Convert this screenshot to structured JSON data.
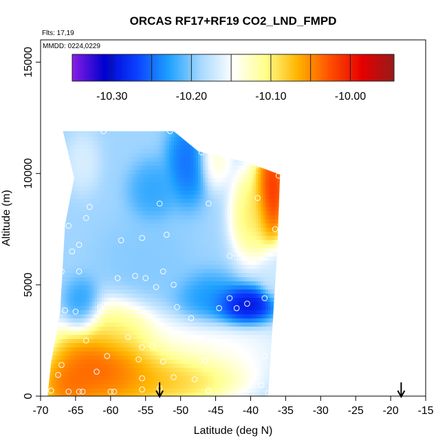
{
  "chart_data": {
    "type": "heatmap",
    "title": "ORCAS RF17+RF19 CO2_LND_FMPD",
    "xlabel": "Latitude (deg N)",
    "ylabel": "Altitude (m)",
    "flights_note": "Flts: 17,19",
    "dates_note": "MMDD: 0224,0229",
    "xlim": [
      -70,
      -15
    ],
    "ylim": [
      0,
      16000
    ],
    "x_ticks": [
      -70,
      -65,
      -60,
      -55,
      -50,
      -45,
      -40,
      -35,
      -30,
      -25,
      -20,
      -15
    ],
    "y_ticks": [
      0,
      5000,
      10000,
      15000
    ],
    "grid": false,
    "colorbar": {
      "range": [
        -10.35,
        -9.945
      ],
      "tick_values": [
        -10.3,
        -10.2,
        -10.1,
        -10.0
      ],
      "tick_labels": [
        "-10.30",
        "-10.20",
        "-10.10",
        "-10.00"
      ],
      "divider_values": [
        -10.3,
        -10.25,
        -10.2,
        -10.15,
        -10.1,
        -10.05,
        -10.0
      ],
      "stops": [
        "#8a1de6",
        "#0000cd",
        "#0a40ff",
        "#1ea0ff",
        "#a8d8ff",
        "#ffffff",
        "#ffff8c",
        "#ffb400",
        "#ff5000",
        "#e60000",
        "#961b1b"
      ]
    },
    "domain_outline": [
      [
        -66.8,
        11900
      ],
      [
        -51,
        11900
      ],
      [
        -47.5,
        11000
      ],
      [
        -40.5,
        10500
      ],
      [
        -35.8,
        9950
      ],
      [
        -36.2,
        6500
      ],
      [
        -36.8,
        3500
      ],
      [
        -37.5,
        0
      ],
      [
        -69,
        0
      ],
      [
        -68.5,
        1500
      ],
      [
        -67.2,
        3800
      ],
      [
        -66.5,
        7700
      ],
      [
        -65.2,
        9800
      ]
    ],
    "field_features": [
      {
        "x": -61,
        "y": 1400,
        "sx": 6,
        "sy": 1500,
        "v": -9.99
      },
      {
        "x": -53,
        "y": 900,
        "sx": 9,
        "sy": 1100,
        "v": -10.05
      },
      {
        "x": -66,
        "y": 400,
        "sx": 3,
        "sy": 900,
        "v": -10.02
      },
      {
        "x": -59,
        "y": 3000,
        "sx": 4,
        "sy": 1100,
        "v": -10.1
      },
      {
        "x": -47,
        "y": 2300,
        "sx": 9,
        "sy": 1100,
        "v": -10.14
      },
      {
        "x": -37,
        "y": 9200,
        "sx": 1.8,
        "sy": 1800,
        "v": -9.97
      },
      {
        "x": -40,
        "y": 8200,
        "sx": 2.2,
        "sy": 1600,
        "v": -10.08
      },
      {
        "x": -45,
        "y": 10700,
        "sx": 1.8,
        "sy": 1000,
        "v": -10.12
      },
      {
        "x": -41,
        "y": 4000,
        "sx": 3.2,
        "sy": 650,
        "v": -10.33
      },
      {
        "x": -46,
        "y": 4300,
        "sx": 3.5,
        "sy": 900,
        "v": -10.24
      },
      {
        "x": -49,
        "y": 10500,
        "sx": 2.2,
        "sy": 1400,
        "v": -10.26
      },
      {
        "x": -54,
        "y": 9200,
        "sx": 2.5,
        "sy": 1000,
        "v": -10.23
      },
      {
        "x": -64,
        "y": 4000,
        "sx": 2,
        "sy": 900,
        "v": -10.24
      },
      {
        "x": -55,
        "y": 6000,
        "sx": 5,
        "sy": 1500,
        "v": -10.2
      },
      {
        "x": -64,
        "y": 10500,
        "sx": 1.8,
        "sy": 1000,
        "v": -10.16
      },
      {
        "x": -36.5,
        "y": 5500,
        "sx": 1.5,
        "sy": 900,
        "v": -10.17
      }
    ],
    "field_base_value": -10.19,
    "sample_points": [
      [
        -61.0,
        11900
      ],
      [
        -51.5,
        11900
      ],
      [
        -47.0,
        10950
      ],
      [
        -44.0,
        10800
      ],
      [
        -41.5,
        10700
      ],
      [
        -39.0,
        10400
      ],
      [
        -36.0,
        9900
      ],
      [
        -53.0,
        8650
      ],
      [
        -46.0,
        8650
      ],
      [
        -39.0,
        8900
      ],
      [
        -63.0,
        8500
      ],
      [
        -63.5,
        8000
      ],
      [
        -66.0,
        7650
      ],
      [
        -36.5,
        7500
      ],
      [
        -58.5,
        7000
      ],
      [
        -55.5,
        7100
      ],
      [
        -52.0,
        7250
      ],
      [
        -64.5,
        6800
      ],
      [
        -65.5,
        6500
      ],
      [
        -43.0,
        6300
      ],
      [
        -41.0,
        6300
      ],
      [
        -40.0,
        6300
      ],
      [
        -37.5,
        6500
      ],
      [
        -67.0,
        5600
      ],
      [
        -64.5,
        5600
      ],
      [
        -52.5,
        5600
      ],
      [
        -59.0,
        5300
      ],
      [
        -56.5,
        5400
      ],
      [
        -55.0,
        5300
      ],
      [
        -51.0,
        5000
      ],
      [
        -53.5,
        4900
      ],
      [
        -36.0,
        5000
      ],
      [
        -43.0,
        4400
      ],
      [
        -38.0,
        4400
      ],
      [
        -40.5,
        4150
      ],
      [
        -44.5,
        3950
      ],
      [
        -42.0,
        3950
      ],
      [
        -50.5,
        4000
      ],
      [
        -61.5,
        4000
      ],
      [
        -66.5,
        3850
      ],
      [
        -65.0,
        3800
      ],
      [
        -54.5,
        3600
      ],
      [
        -48.5,
        3500
      ],
      [
        -57.5,
        2650
      ],
      [
        -63.5,
        2500
      ],
      [
        -36.5,
        2650
      ],
      [
        -54.0,
        2250
      ],
      [
        -55.5,
        2200
      ],
      [
        -44.0,
        2000
      ],
      [
        -60.5,
        1800
      ],
      [
        -38.0,
        1800
      ],
      [
        -41.0,
        1650
      ],
      [
        -56.0,
        1650
      ],
      [
        -52.5,
        1550
      ],
      [
        -46.5,
        1600
      ],
      [
        -62.0,
        1100
      ],
      [
        -67.0,
        1400
      ],
      [
        -51.0,
        850
      ],
      [
        -48.0,
        750
      ],
      [
        -55.5,
        800
      ],
      [
        -67.5,
        950
      ],
      [
        -66.0,
        200
      ],
      [
        -68.5,
        250
      ],
      [
        -64.5,
        200
      ],
      [
        -64.0,
        200
      ],
      [
        -60.0,
        200
      ],
      [
        -59.5,
        200
      ],
      [
        -55.5,
        300
      ],
      [
        -53.0,
        350
      ],
      [
        -46.0,
        250
      ],
      [
        -38.5,
        500
      ],
      [
        -37.5,
        150
      ]
    ],
    "arrows_x": [
      -53.0,
      -18.5
    ]
  }
}
